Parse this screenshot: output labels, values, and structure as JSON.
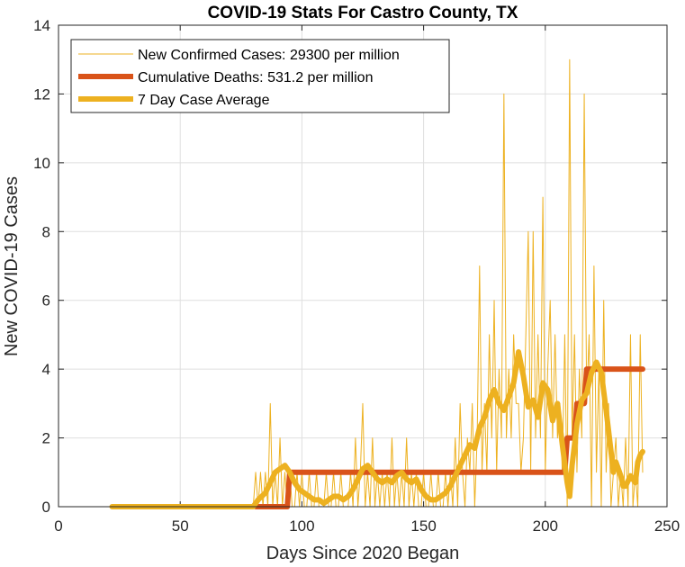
{
  "chart_data": {
    "type": "line",
    "title": "COVID-19 Stats For Castro County, TX",
    "xlabel": "Days Since 2020 Began",
    "ylabel": "New COVID-19 Cases",
    "xlim": [
      0,
      250
    ],
    "ylim": [
      0,
      14
    ],
    "xticks": [
      0,
      50,
      100,
      150,
      200,
      250
    ],
    "yticks": [
      0,
      2,
      4,
      6,
      8,
      10,
      12,
      14
    ],
    "grid": true,
    "legend_position": "top-left",
    "series": [
      {
        "name": "New Confirmed Cases: 29300 per million",
        "color": "#EDB120",
        "style": "thin",
        "points": [
          [
            22,
            0
          ],
          [
            30,
            0
          ],
          [
            40,
            0
          ],
          [
            50,
            0
          ],
          [
            60,
            0
          ],
          [
            70,
            0
          ],
          [
            78,
            0
          ],
          [
            80,
            0
          ],
          [
            81,
            1
          ],
          [
            82,
            0
          ],
          [
            83,
            1
          ],
          [
            84,
            0
          ],
          [
            85,
            1
          ],
          [
            86,
            0
          ],
          [
            87,
            3
          ],
          [
            88,
            0
          ],
          [
            89,
            1
          ],
          [
            90,
            0
          ],
          [
            91,
            2
          ],
          [
            92,
            0
          ],
          [
            93,
            1
          ],
          [
            94,
            0
          ],
          [
            95,
            1
          ],
          [
            96,
            0
          ],
          [
            97,
            0
          ],
          [
            98,
            1
          ],
          [
            99,
            0
          ],
          [
            100,
            1
          ],
          [
            101,
            0
          ],
          [
            102,
            0
          ],
          [
            103,
            1
          ],
          [
            104,
            0
          ],
          [
            105,
            0
          ],
          [
            106,
            1
          ],
          [
            107,
            0
          ],
          [
            108,
            0
          ],
          [
            109,
            0
          ],
          [
            110,
            1
          ],
          [
            111,
            0
          ],
          [
            112,
            0
          ],
          [
            113,
            1
          ],
          [
            114,
            0
          ],
          [
            115,
            0
          ],
          [
            116,
            1
          ],
          [
            117,
            0
          ],
          [
            118,
            0
          ],
          [
            119,
            0
          ],
          [
            120,
            1
          ],
          [
            121,
            0
          ],
          [
            122,
            2
          ],
          [
            123,
            0
          ],
          [
            124,
            1
          ],
          [
            125,
            3
          ],
          [
            126,
            0
          ],
          [
            127,
            1
          ],
          [
            128,
            0
          ],
          [
            129,
            2
          ],
          [
            130,
            0
          ],
          [
            131,
            1
          ],
          [
            132,
            0
          ],
          [
            133,
            1
          ],
          [
            134,
            0
          ],
          [
            135,
            1
          ],
          [
            136,
            0
          ],
          [
            137,
            2
          ],
          [
            138,
            0
          ],
          [
            139,
            1
          ],
          [
            140,
            0
          ],
          [
            141,
            1
          ],
          [
            142,
            0
          ],
          [
            143,
            2
          ],
          [
            144,
            0
          ],
          [
            145,
            1
          ],
          [
            146,
            0
          ],
          [
            147,
            1
          ],
          [
            148,
            0
          ],
          [
            149,
            0
          ],
          [
            150,
            1
          ],
          [
            151,
            0
          ],
          [
            152,
            0
          ],
          [
            153,
            1
          ],
          [
            154,
            0
          ],
          [
            155,
            0
          ],
          [
            156,
            1
          ],
          [
            157,
            0
          ],
          [
            158,
            0
          ],
          [
            159,
            1
          ],
          [
            160,
            0
          ],
          [
            161,
            1
          ],
          [
            162,
            0
          ],
          [
            163,
            2
          ],
          [
            164,
            0
          ],
          [
            165,
            3
          ],
          [
            166,
            1
          ],
          [
            167,
            0
          ],
          [
            168,
            2
          ],
          [
            169,
            1
          ],
          [
            170,
            3
          ],
          [
            171,
            0
          ],
          [
            172,
            2
          ],
          [
            173,
            7
          ],
          [
            174,
            1
          ],
          [
            175,
            3
          ],
          [
            176,
            1
          ],
          [
            177,
            5
          ],
          [
            178,
            2
          ],
          [
            179,
            6
          ],
          [
            180,
            1
          ],
          [
            181,
            4
          ],
          [
            182,
            2
          ],
          [
            183,
            12
          ],
          [
            184,
            2
          ],
          [
            185,
            4
          ],
          [
            186,
            2
          ],
          [
            187,
            5
          ],
          [
            188,
            3
          ],
          [
            189,
            3
          ],
          [
            190,
            1
          ],
          [
            191,
            2
          ],
          [
            192,
            5
          ],
          [
            193,
            8
          ],
          [
            194,
            1
          ],
          [
            195,
            8
          ],
          [
            196,
            2
          ],
          [
            197,
            5
          ],
          [
            198,
            2
          ],
          [
            199,
            9
          ],
          [
            200,
            1
          ],
          [
            201,
            4
          ],
          [
            202,
            6
          ],
          [
            203,
            2
          ],
          [
            204,
            5
          ],
          [
            205,
            2
          ],
          [
            206,
            3
          ],
          [
            207,
            1
          ],
          [
            208,
            5
          ],
          [
            209,
            0
          ],
          [
            210,
            13
          ],
          [
            211,
            2
          ],
          [
            212,
            5
          ],
          [
            213,
            1
          ],
          [
            214,
            4
          ],
          [
            215,
            2
          ],
          [
            216,
            12
          ],
          [
            217,
            3
          ],
          [
            218,
            5
          ],
          [
            219,
            0
          ],
          [
            220,
            7
          ],
          [
            221,
            1
          ],
          [
            222,
            4
          ],
          [
            223,
            0
          ],
          [
            224,
            6
          ],
          [
            225,
            1
          ],
          [
            226,
            3
          ],
          [
            227,
            0
          ],
          [
            228,
            1
          ],
          [
            229,
            2
          ],
          [
            230,
            0
          ],
          [
            231,
            1
          ],
          [
            232,
            0
          ],
          [
            233,
            2
          ],
          [
            234,
            0
          ],
          [
            235,
            5
          ],
          [
            236,
            0
          ],
          [
            237,
            1
          ],
          [
            238,
            0
          ],
          [
            239,
            5
          ],
          [
            240,
            1
          ]
        ]
      },
      {
        "name": "Cumulative Deaths: 531.2 per million",
        "color": "#D95319",
        "style": "thick",
        "points": [
          [
            81,
            0
          ],
          [
            94,
            0
          ],
          [
            95,
            1
          ],
          [
            208,
            1
          ],
          [
            209,
            2
          ],
          [
            212,
            2
          ],
          [
            213,
            3
          ],
          [
            216,
            3
          ],
          [
            217,
            4
          ],
          [
            240,
            4
          ]
        ]
      },
      {
        "name": "7 Day Case Average",
        "color": "#EDB120",
        "style": "thick",
        "points": [
          [
            22,
            0
          ],
          [
            80,
            0
          ],
          [
            82,
            0.2
          ],
          [
            85,
            0.4
          ],
          [
            87,
            0.7
          ],
          [
            89,
            1.0
          ],
          [
            91,
            1.1
          ],
          [
            93,
            1.2
          ],
          [
            95,
            1.0
          ],
          [
            97,
            0.7
          ],
          [
            99,
            0.5
          ],
          [
            101,
            0.4
          ],
          [
            103,
            0.3
          ],
          [
            105,
            0.2
          ],
          [
            107,
            0.2
          ],
          [
            109,
            0.1
          ],
          [
            111,
            0.2
          ],
          [
            113,
            0.3
          ],
          [
            115,
            0.3
          ],
          [
            117,
            0.2
          ],
          [
            119,
            0.3
          ],
          [
            121,
            0.5
          ],
          [
            123,
            0.8
          ],
          [
            125,
            1.1
          ],
          [
            127,
            1.2
          ],
          [
            129,
            1.0
          ],
          [
            131,
            0.8
          ],
          [
            133,
            0.7
          ],
          [
            135,
            0.8
          ],
          [
            137,
            0.7
          ],
          [
            139,
            0.9
          ],
          [
            141,
            1.0
          ],
          [
            143,
            0.8
          ],
          [
            145,
            0.7
          ],
          [
            147,
            0.8
          ],
          [
            149,
            0.5
          ],
          [
            151,
            0.3
          ],
          [
            153,
            0.2
          ],
          [
            155,
            0.2
          ],
          [
            157,
            0.3
          ],
          [
            159,
            0.4
          ],
          [
            161,
            0.6
          ],
          [
            163,
            0.9
          ],
          [
            165,
            1.2
          ],
          [
            167,
            1.5
          ],
          [
            169,
            1.8
          ],
          [
            171,
            1.7
          ],
          [
            173,
            2.3
          ],
          [
            175,
            2.6
          ],
          [
            177,
            3.1
          ],
          [
            179,
            3.4
          ],
          [
            181,
            3.0
          ],
          [
            183,
            2.8
          ],
          [
            185,
            3.2
          ],
          [
            187,
            3.6
          ],
          [
            189,
            4.5
          ],
          [
            191,
            3.8
          ],
          [
            193,
            2.9
          ],
          [
            195,
            3.1
          ],
          [
            197,
            2.6
          ],
          [
            199,
            3.6
          ],
          [
            201,
            3.4
          ],
          [
            203,
            2.5
          ],
          [
            205,
            3.0
          ],
          [
            207,
            1.8
          ],
          [
            209,
            0.7
          ],
          [
            210,
            0.3
          ],
          [
            211,
            1.2
          ],
          [
            213,
            2.4
          ],
          [
            215,
            3.1
          ],
          [
            217,
            3.3
          ],
          [
            219,
            3.9
          ],
          [
            221,
            4.2
          ],
          [
            223,
            3.9
          ],
          [
            225,
            2.8
          ],
          [
            227,
            1.6
          ],
          [
            228,
            1.0
          ],
          [
            229,
            1.3
          ],
          [
            231,
            0.9
          ],
          [
            232,
            0.6
          ],
          [
            233,
            0.6
          ],
          [
            235,
            0.9
          ],
          [
            237,
            0.7
          ],
          [
            238,
            1.3
          ],
          [
            239,
            1.5
          ],
          [
            240,
            1.6
          ]
        ]
      }
    ]
  }
}
